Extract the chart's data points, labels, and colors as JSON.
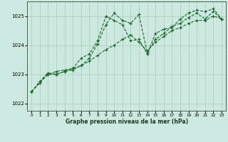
{
  "title": "Graphe pression niveau de la mer (hPa)",
  "background_color": "#cce8e0",
  "grid_color": "#aaccbb",
  "line_color": "#1a6b2a",
  "xlim": [
    -0.5,
    23.5
  ],
  "ylim": [
    1021.75,
    1025.5
  ],
  "yticks": [
    1022,
    1023,
    1024,
    1025
  ],
  "xticks": [
    0,
    1,
    2,
    3,
    4,
    5,
    6,
    7,
    8,
    9,
    10,
    11,
    12,
    13,
    14,
    15,
    16,
    17,
    18,
    19,
    20,
    21,
    22,
    23
  ],
  "series_jagged": {
    "x": [
      0,
      1,
      2,
      3,
      4,
      5,
      6,
      7,
      8,
      9,
      10,
      11,
      12,
      13,
      14,
      15,
      16,
      17,
      18,
      19,
      20,
      21,
      22,
      23
    ],
    "y": [
      1022.4,
      1022.75,
      1023.05,
      1023.0,
      1023.1,
      1023.2,
      1023.55,
      1023.7,
      1024.15,
      1025.0,
      1024.85,
      1024.7,
      1024.15,
      1024.2,
      1023.7,
      1024.4,
      1024.55,
      1024.6,
      1024.9,
      1025.1,
      1025.2,
      1025.15,
      1025.25,
      1024.9
    ]
  },
  "series_mid": {
    "x": [
      0,
      1,
      2,
      3,
      4,
      5,
      6,
      7,
      8,
      9,
      10,
      11,
      12,
      13,
      14,
      15,
      16,
      17,
      18,
      19,
      20,
      21,
      22,
      23
    ],
    "y": [
      1022.4,
      1022.75,
      1023.0,
      1023.0,
      1023.1,
      1023.15,
      1023.3,
      1023.55,
      1024.05,
      1024.7,
      1025.1,
      1024.85,
      1024.75,
      1025.05,
      1023.75,
      1024.2,
      1024.4,
      1024.65,
      1024.75,
      1024.95,
      1025.1,
      1024.9,
      1025.15,
      1024.9
    ]
  },
  "series_trend": {
    "x": [
      0,
      1,
      2,
      3,
      4,
      5,
      6,
      7,
      8,
      9,
      10,
      11,
      12,
      13,
      14,
      15,
      16,
      17,
      18,
      19,
      20,
      21,
      22,
      23
    ],
    "y": [
      1022.4,
      1022.7,
      1023.0,
      1023.1,
      1023.15,
      1023.2,
      1023.3,
      1023.45,
      1023.65,
      1023.85,
      1024.0,
      1024.2,
      1024.35,
      1024.1,
      1023.8,
      1024.1,
      1024.3,
      1024.5,
      1024.6,
      1024.75,
      1024.85,
      1024.85,
      1025.0,
      1024.9
    ]
  }
}
